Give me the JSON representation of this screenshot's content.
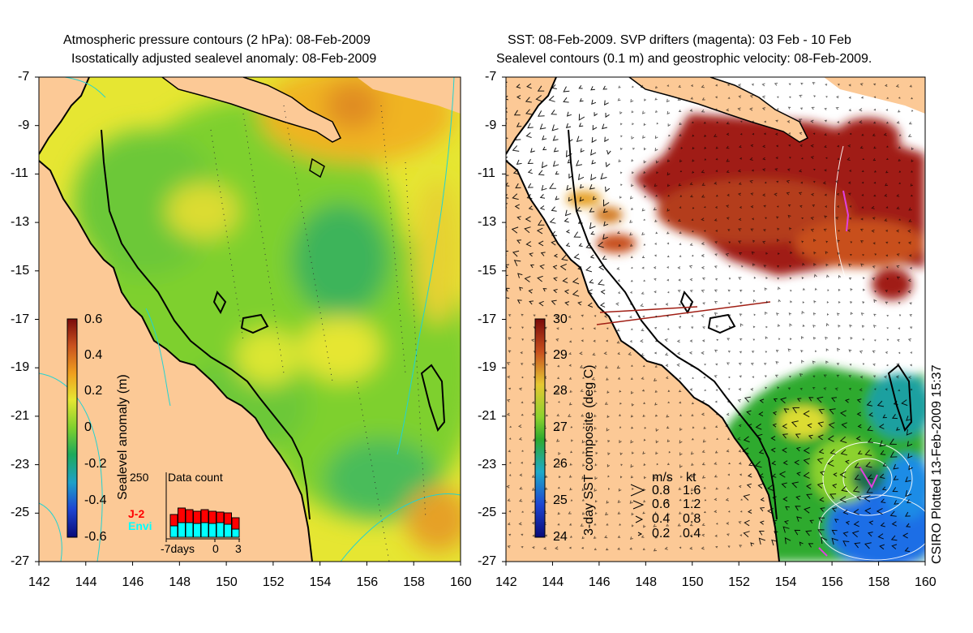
{
  "left_panel": {
    "title_line1": "Atmospheric pressure contours (2 hPa): 08-Feb-2009",
    "title_line2": "Isostatically adjusted sealevel anomaly: 08-Feb-2009",
    "colorbar_label": "Sealevel anomaly (m)",
    "colorbar_ticks": [
      "0.6",
      "0.4",
      "0.2",
      "0",
      "-0.2",
      "-0.4",
      "-0.6"
    ],
    "inset": {
      "title": "Data count",
      "y_max_label": "250",
      "x_labels": [
        "-7days",
        "0",
        "3"
      ],
      "legend_j2": "J-2",
      "legend_envi": "Envi",
      "colors": {
        "j2": "#ff0000",
        "envi": "#00ffff"
      }
    }
  },
  "right_panel": {
    "title_line1": "SST: 08-Feb-2009. SVP drifters (magenta): 03 Feb - 10 Feb",
    "title_line2": "Sealevel contours (0.1 m) and geostrophic velocity: 08-Feb-2009.",
    "colorbar_label": "3-day SST composite (deg C)",
    "colorbar_ticks": [
      "30",
      "29",
      "28",
      "27",
      "26",
      "25",
      "24"
    ],
    "speed_legend": {
      "header_ms": "m/s",
      "header_kt": "kt",
      "rows": [
        {
          "ms": "0.8",
          "kt": "1.6"
        },
        {
          "ms": "0.6",
          "kt": "1.2"
        },
        {
          "ms": "0.4",
          "kt": "0.8"
        },
        {
          "ms": "0.2",
          "kt": "0.4"
        }
      ]
    },
    "credit": "CSIRO Plotted 13-Feb-2009 15:37"
  },
  "axes": {
    "y_ticks": [
      "-7",
      "-9",
      "-11",
      "-13",
      "-15",
      "-17",
      "-19",
      "-21",
      "-23",
      "-25",
      "-27"
    ],
    "x_ticks": [
      "142",
      "144",
      "146",
      "148",
      "150",
      "152",
      "154",
      "156",
      "158",
      "160"
    ],
    "lon_range": [
      142,
      160
    ],
    "lat_range": [
      -27,
      -7
    ]
  },
  "colors": {
    "land": "#fcc996",
    "coast": "#000000",
    "sla_green": "#7ed02e",
    "sla_yellow": "#e6e632",
    "sst_red": "#a01e14",
    "sst_green": "#2eaa2e",
    "sst_blue": "#1e6ee6",
    "contour_cyan": "#22d2d2"
  },
  "icons": [
    "velocity-arrow-icon"
  ]
}
